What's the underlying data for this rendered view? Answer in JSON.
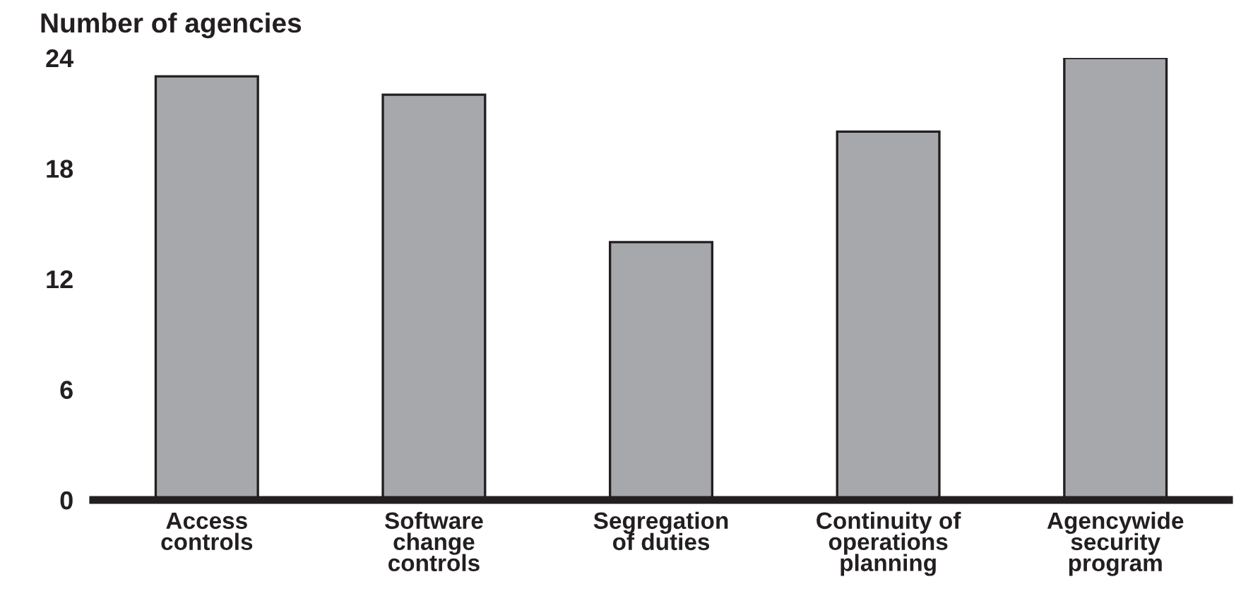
{
  "chart_data": {
    "type": "bar",
    "ylabel": "Number of agencies",
    "categories": [
      "Access\ncontrols",
      "Software\nchange\ncontrols",
      "Segregation\nof duties",
      "Continuity of\noperations\nplanning",
      "Agencywide\nsecurity\nprogram"
    ],
    "values": [
      23,
      22,
      14,
      20,
      24
    ],
    "color": "#a7a8ab",
    "ylim": [
      0,
      24
    ],
    "yticks": [
      0,
      6,
      12,
      18,
      24
    ],
    "grid": false
  }
}
